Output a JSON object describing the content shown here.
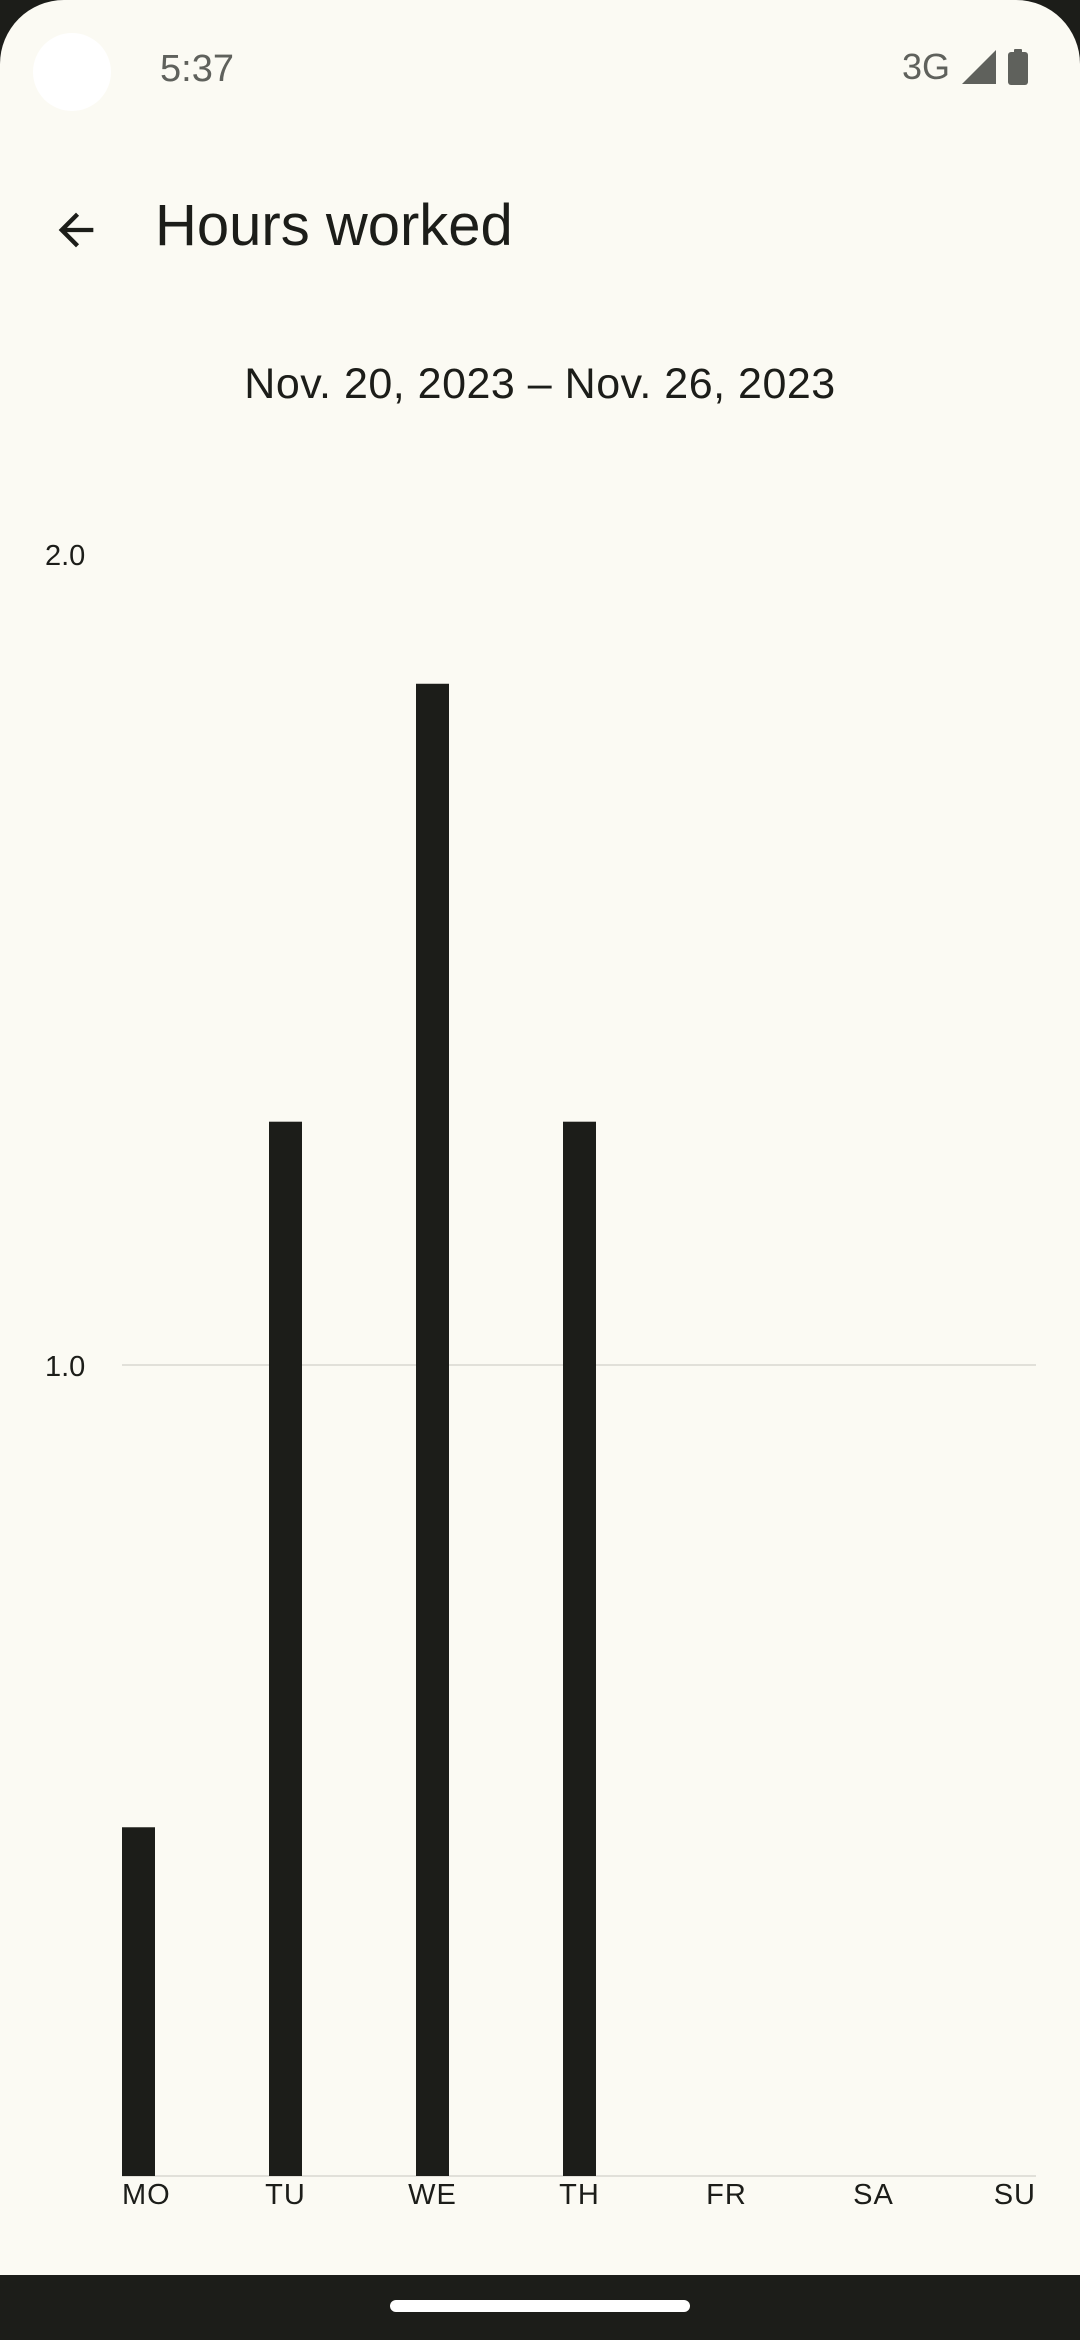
{
  "status_bar": {
    "time": "5:37",
    "network": "3G"
  },
  "app_bar": {
    "title": "Hours worked",
    "back_icon": "arrow-back-icon"
  },
  "date_range": "Nov. 20, 2023 – Nov. 26, 2023",
  "chart_data": {
    "type": "bar",
    "categories": [
      "MO",
      "TU",
      "WE",
      "TH",
      "FR",
      "SA",
      "SU"
    ],
    "values": [
      0.43,
      1.3,
      1.84,
      1.3,
      0,
      0,
      0
    ],
    "ylim": [
      0,
      2.0
    ],
    "yticks": [
      "1.0",
      "2.0"
    ],
    "grid": "horizontal at 1.0",
    "bar_color": "#1c1d19",
    "grid_color": "#e1e0d9"
  },
  "colors": {
    "background": "#fbfaf3",
    "text": "#1c1d19",
    "status_text": "#5f615c"
  }
}
